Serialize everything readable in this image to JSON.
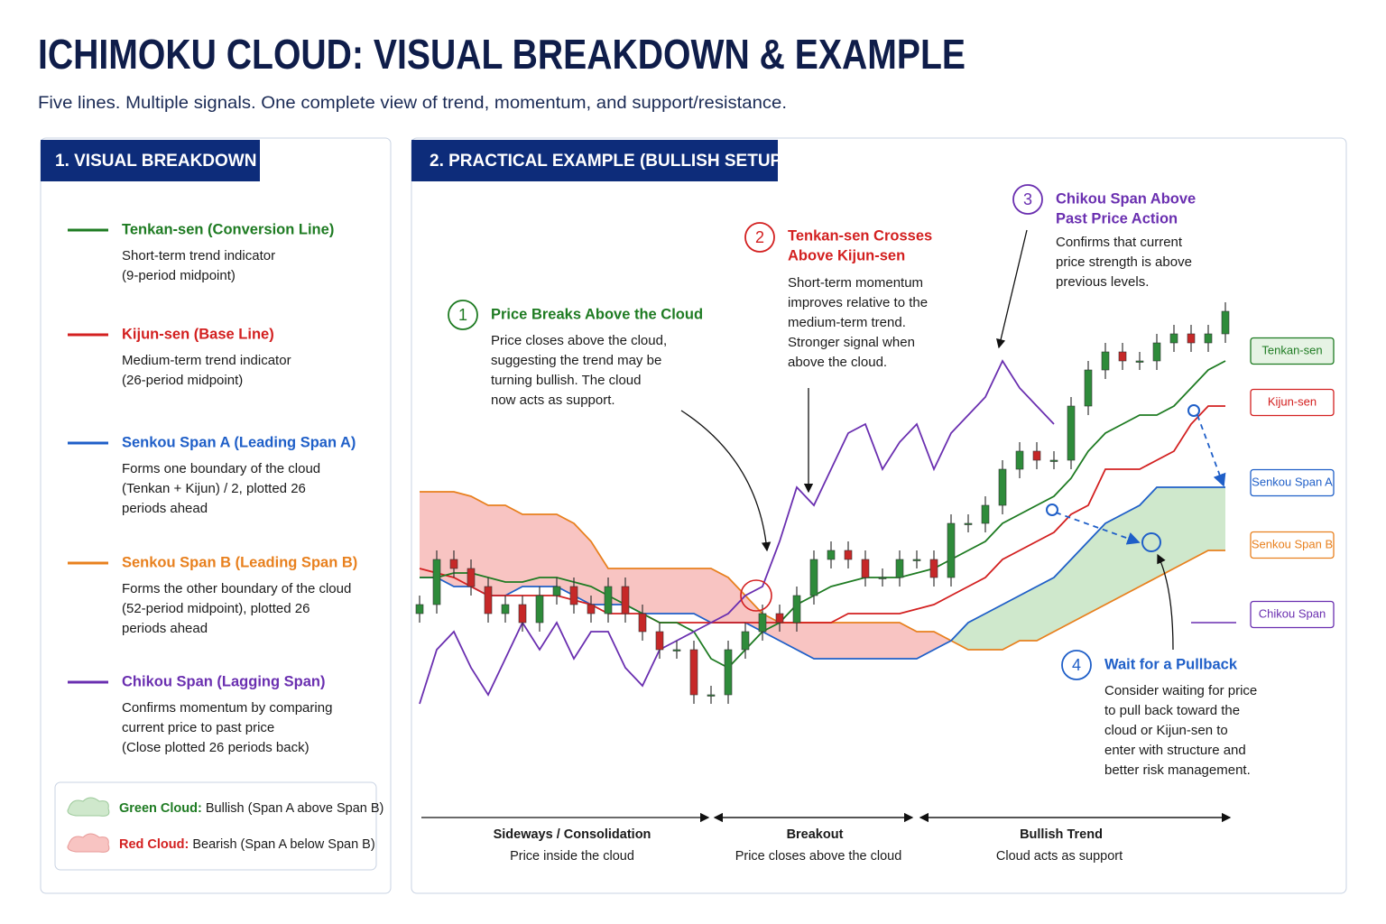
{
  "header": {
    "title": "ICHIMOKU CLOUD: VISUAL BREAKDOWN & EXAMPLE",
    "subtitle": "Five lines. Multiple signals. One complete view of trend, momentum, and support/resistance."
  },
  "breakdown": {
    "title": "1. VISUAL BREAKDOWN",
    "items": [
      {
        "name": "Tenkan-sen (Conversion Line)",
        "lines": [
          "Short-term trend indicator",
          "(9-period midpoint)"
        ]
      },
      {
        "name": "Kijun-sen (Base Line)",
        "lines": [
          "Medium-term trend indicator",
          "(26-period midpoint)"
        ]
      },
      {
        "name": "Senkou Span A (Leading Span A)",
        "lines": [
          "Forms one boundary of the cloud",
          "(Tenkan + Kijun) / 2, plotted 26",
          "periods ahead"
        ]
      },
      {
        "name": "Senkou Span B (Leading Span B)",
        "lines": [
          "Forms the other boundary of the cloud",
          "(52-period midpoint), plotted 26",
          "periods ahead"
        ]
      },
      {
        "name": "Chikou Span (Lagging Span)",
        "lines": [
          "Confirms momentum by comparing",
          "current price to past price",
          "(Close plotted 26 periods back)"
        ]
      }
    ],
    "clouds": [
      {
        "label": "Green Cloud:",
        "text": " Bullish (Span A above Span B)"
      },
      {
        "label": "Red Cloud:",
        "text": " Bearish (Span A below Span B)"
      }
    ]
  },
  "example": {
    "title": "2. PRACTICAL EXAMPLE (BULLISH SETUP)",
    "annotations": [
      {
        "number": "1",
        "title": [
          "Price Breaks Above the Cloud"
        ],
        "body": [
          "Price closes above the cloud,",
          "suggesting the trend may be",
          "turning bullish. The cloud",
          "now acts as support."
        ]
      },
      {
        "number": "2",
        "title": [
          "Tenkan-sen Crosses",
          "Above Kijun-sen"
        ],
        "body": [
          "Short-term momentum",
          "improves relative to the",
          "medium-term trend.",
          "Stronger signal when",
          "above the cloud."
        ]
      },
      {
        "number": "3",
        "title": [
          "Chikou Span Above",
          "Past Price Action"
        ],
        "body": [
          "Confirms that current",
          "price strength is above",
          "previous levels."
        ]
      },
      {
        "number": "4",
        "title": [
          "Wait for a Pullback"
        ],
        "body": [
          "Consider waiting for price",
          "to pull back toward the",
          "cloud or Kijun-sen to",
          "enter with structure and",
          "better risk management."
        ]
      }
    ],
    "phases": [
      {
        "title": "Sideways / Consolidation",
        "caption": "Price inside the cloud"
      },
      {
        "title": "Breakout",
        "caption": "Price closes above the cloud"
      },
      {
        "title": "Bullish Trend",
        "caption": "Cloud acts as support"
      }
    ]
  },
  "chart_data": {
    "type": "candlestick",
    "ylim": [
      0,
      100
    ],
    "candles": {
      "open": [
        24,
        26,
        36,
        34,
        30,
        24,
        26,
        22,
        28,
        30,
        26,
        24,
        30,
        24,
        20,
        16,
        16,
        6,
        6,
        16,
        20,
        24,
        22,
        28,
        36,
        38,
        36,
        32,
        32,
        36,
        36,
        32,
        44,
        44,
        48,
        56,
        60,
        58,
        58,
        70,
        78,
        82,
        80,
        80,
        84,
        86,
        84,
        86
      ],
      "high": [
        28,
        38,
        38,
        36,
        32,
        28,
        28,
        30,
        32,
        32,
        28,
        32,
        32,
        26,
        22,
        18,
        18,
        8,
        18,
        22,
        26,
        26,
        30,
        38,
        40,
        40,
        38,
        34,
        38,
        38,
        38,
        46,
        46,
        50,
        58,
        62,
        62,
        60,
        72,
        80,
        84,
        84,
        82,
        86,
        88,
        88,
        88,
        93
      ],
      "low": [
        22,
        24,
        32,
        28,
        22,
        22,
        20,
        20,
        26,
        24,
        22,
        22,
        22,
        18,
        14,
        14,
        4,
        4,
        4,
        14,
        18,
        20,
        20,
        26,
        34,
        34,
        30,
        30,
        30,
        34,
        30,
        30,
        42,
        42,
        46,
        54,
        56,
        56,
        56,
        68,
        76,
        78,
        78,
        78,
        82,
        82,
        82,
        84
      ],
      "close": [
        26,
        36,
        34,
        30,
        24,
        26,
        22,
        28,
        30,
        26,
        24,
        30,
        24,
        20,
        16,
        16,
        6,
        6,
        16,
        20,
        24,
        22,
        28,
        36,
        38,
        36,
        32,
        32,
        36,
        36,
        32,
        44,
        44,
        48,
        56,
        60,
        58,
        58,
        70,
        78,
        82,
        80,
        80,
        84,
        86,
        84,
        86,
        91
      ],
      "up_color": "#2e8b3a",
      "down_color": "#c62828"
    },
    "cloud_colors": {
      "bullish": "#cfe8cc",
      "bearish": "#f8c4c2"
    },
    "series": [
      {
        "name": "Tenkan-sen",
        "color": "#1e7b22",
        "values": [
          32,
          32,
          33,
          33,
          32,
          31,
          31,
          32,
          32,
          31,
          30,
          28,
          26,
          24,
          22,
          22,
          20,
          14,
          12,
          16,
          20,
          22,
          26,
          28,
          30,
          31,
          32,
          32,
          32,
          33,
          34,
          36,
          38,
          40,
          44,
          46,
          48,
          50,
          54,
          60,
          64,
          66,
          68,
          68,
          70,
          74,
          78,
          80
        ]
      },
      {
        "name": "Kijun-sen",
        "color": "#d32020",
        "values": [
          34,
          33,
          32,
          30,
          28,
          28,
          28,
          28,
          28,
          27,
          26,
          24,
          24,
          24,
          22,
          22,
          22,
          22,
          22,
          22,
          22,
          22,
          22,
          22,
          22,
          24,
          24,
          24,
          24,
          25,
          26,
          28,
          30,
          32,
          36,
          38,
          40,
          42,
          46,
          48,
          56,
          56,
          56,
          58,
          60,
          66,
          70,
          70
        ]
      },
      {
        "name": "Senkou Span A",
        "color": "#1f5fc8",
        "values": [
          32,
          32,
          30,
          30,
          28,
          28,
          30,
          30,
          30,
          28,
          26,
          26,
          26,
          24,
          24,
          24,
          24,
          22,
          22,
          22,
          20,
          18,
          16,
          14,
          14,
          14,
          14,
          14,
          14,
          14,
          16,
          18,
          22,
          24,
          26,
          28,
          30,
          32,
          36,
          40,
          44,
          46,
          48,
          52,
          52,
          52,
          52,
          52
        ]
      },
      {
        "name": "Senkou Span B",
        "color": "#e8801e",
        "values": [
          51,
          51,
          51,
          50,
          48,
          48,
          46,
          46,
          46,
          44,
          40,
          34,
          34,
          34,
          34,
          34,
          34,
          34,
          32,
          28,
          24,
          22,
          22,
          22,
          22,
          22,
          22,
          22,
          22,
          20,
          20,
          18,
          16,
          16,
          16,
          18,
          18,
          20,
          22,
          24,
          26,
          28,
          30,
          32,
          34,
          36,
          38,
          38
        ]
      },
      {
        "name": "Chikou Span",
        "color": "#6a2fb0",
        "values": [
          4,
          16,
          20,
          12,
          6,
          14,
          22,
          16,
          22,
          14,
          20,
          20,
          12,
          8,
          16,
          18,
          20,
          22,
          24,
          28,
          30,
          40,
          52,
          48,
          56,
          64,
          66,
          56,
          62,
          66,
          56,
          64,
          68,
          72,
          80,
          74,
          70,
          66,
          null,
          null,
          null,
          null,
          null,
          null,
          null,
          null,
          null,
          null
        ]
      }
    ]
  }
}
